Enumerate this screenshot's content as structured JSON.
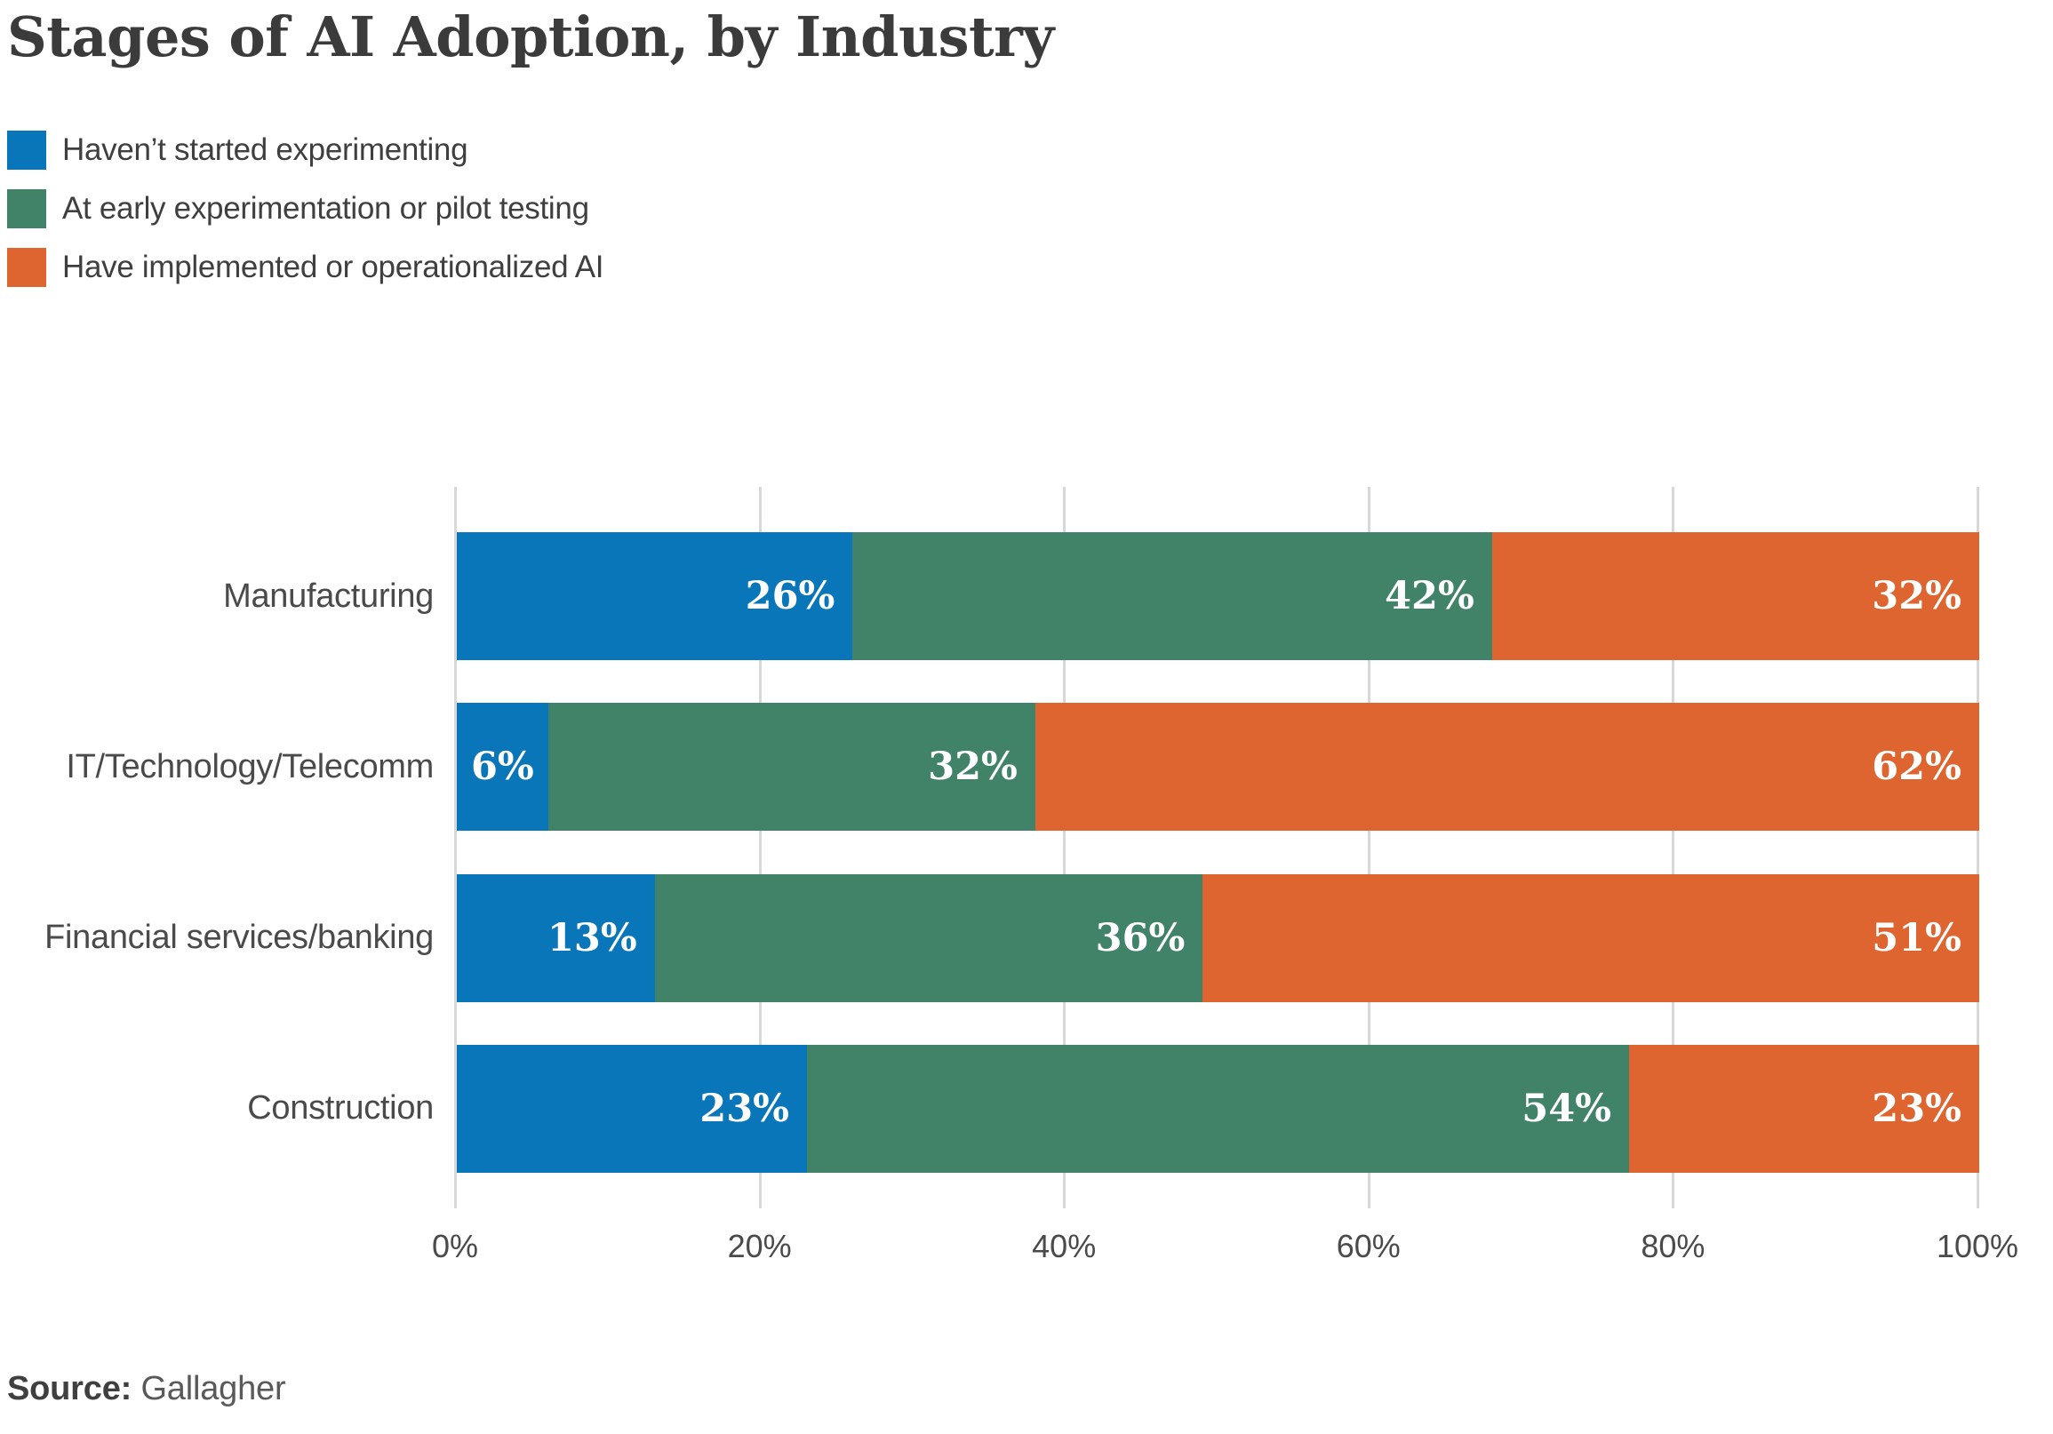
{
  "title": "Stages of AI Adoption, by Industry",
  "source": {
    "label": "Source:",
    "value": "Gallagher"
  },
  "legend": {
    "items": [
      {
        "label": "Haven’t started experimenting",
        "color": "#0876b8"
      },
      {
        "label": "At early experimentation or pilot testing",
        "color": "#418368"
      },
      {
        "label": "Have implemented or operationalized AI",
        "color": "#de6430"
      }
    ]
  },
  "chart_data": {
    "type": "bar",
    "orientation": "horizontal",
    "stacked": true,
    "unit": "%",
    "title": "Stages of AI Adoption, by Industry",
    "xlabel": "",
    "ylabel": "",
    "xlim": [
      0,
      100
    ],
    "x_ticks": [
      {
        "value": 0,
        "label": "0%"
      },
      {
        "value": 20,
        "label": "20%"
      },
      {
        "value": 40,
        "label": "40%"
      },
      {
        "value": 60,
        "label": "60%"
      },
      {
        "value": 80,
        "label": "80%"
      },
      {
        "value": 100,
        "label": "100%"
      }
    ],
    "grid": "vertical",
    "legend_position": "top-left",
    "value_labels": "inside-right, white",
    "categories": [
      "Manufacturing",
      "IT/Technology/Telecomm",
      "Financial services/banking",
      "Construction"
    ],
    "series": [
      {
        "name": "Haven’t started experimenting",
        "color": "#0876b8",
        "values": [
          26,
          6,
          13,
          23
        ]
      },
      {
        "name": "At early experimentation or pilot testing",
        "color": "#418368",
        "values": [
          42,
          32,
          36,
          54
        ]
      },
      {
        "name": "Have implemented or operationalized AI",
        "color": "#de6430",
        "values": [
          32,
          62,
          51,
          23
        ]
      }
    ],
    "value_label_texts": [
      [
        "26%",
        "42%",
        "32%"
      ],
      [
        "6%",
        "32%",
        "62%"
      ],
      [
        "13%",
        "36%",
        "51%"
      ],
      [
        "23%",
        "54%",
        "23%"
      ]
    ]
  },
  "colors": {
    "background": "#ffffff",
    "gridline": "#d8d8d8",
    "title_text": "#3b3b3b",
    "category_text": "#4a4a4a",
    "tick_text": "#4a4a4a",
    "value_text": "#ffffff"
  }
}
